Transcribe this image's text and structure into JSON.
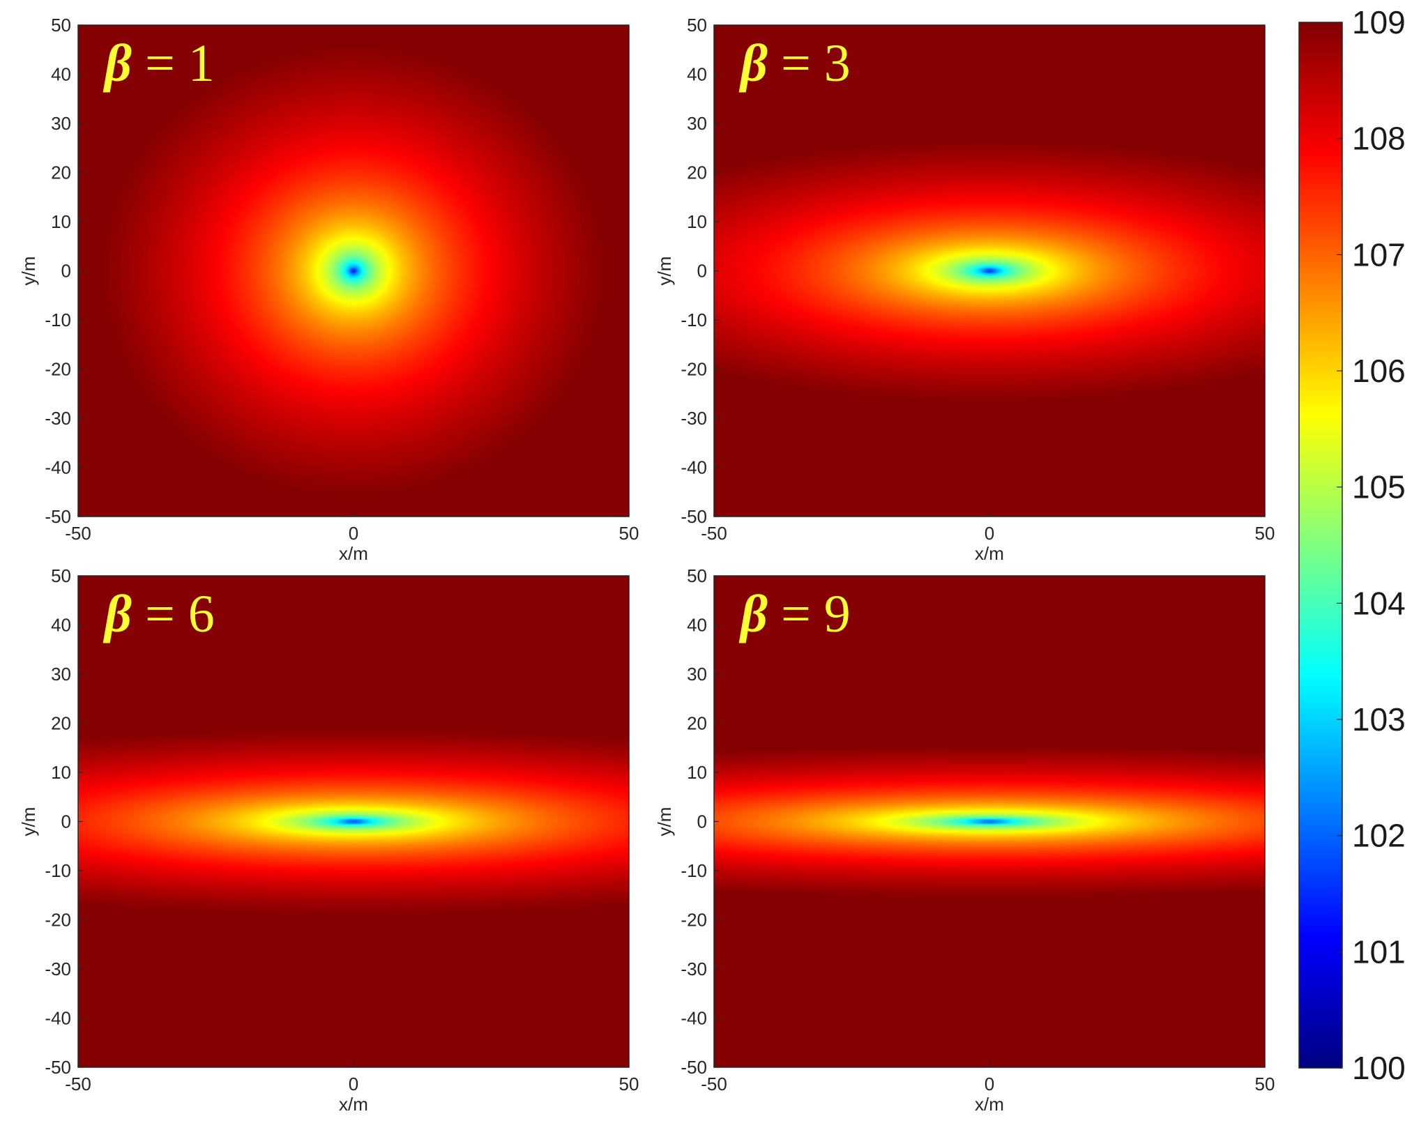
{
  "chart_data": {
    "type": "heatmap",
    "colormap": "jet",
    "colorbar": {
      "range": [
        100,
        109
      ],
      "ticks": [
        "100",
        "101",
        "102",
        "103",
        "104",
        "105",
        "106",
        "107",
        "108",
        "109"
      ]
    },
    "panels": [
      {
        "label_symbol": "β",
        "label_rest": " = 1",
        "beta": 1
      },
      {
        "label_symbol": "β",
        "label_rest": " = 3",
        "beta": 3
      },
      {
        "label_symbol": "β",
        "label_rest": " = 6",
        "beta": 6
      },
      {
        "label_symbol": "β",
        "label_rest": " = 9",
        "beta": 9
      }
    ],
    "xlabel": "x/m",
    "ylabel": "y/m",
    "xlim": [
      -50,
      50
    ],
    "ylim": [
      -50,
      50
    ],
    "xticks": [
      "-50",
      "0",
      "50"
    ],
    "yticks": [
      "50",
      "40",
      "30",
      "20",
      "10",
      "0",
      "-10",
      "-20",
      "-30",
      "-40",
      "-50"
    ]
  }
}
